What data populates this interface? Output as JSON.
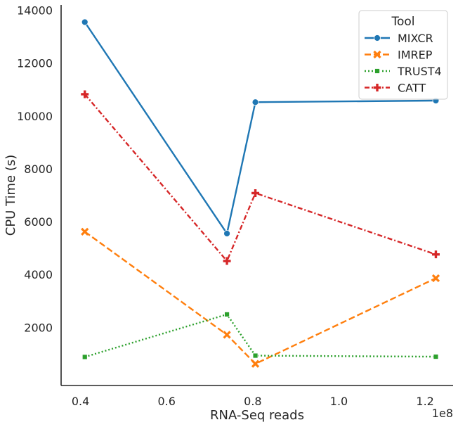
{
  "chart_data": {
    "type": "line",
    "xlabel": "RNA-Seq reads",
    "ylabel": "CPU Time (s)",
    "x_offset_label": "1e8",
    "xlim": [
      0.355,
      1.265
    ],
    "ylim": [
      -200,
      14200
    ],
    "x_ticks": [
      0.4,
      0.6,
      0.8,
      1.0,
      1.2
    ],
    "x_tick_labels": [
      "0.4",
      "0.6",
      "0.8",
      "1.0",
      "1.2"
    ],
    "y_ticks": [
      2000,
      4000,
      6000,
      8000,
      10000,
      12000,
      14000
    ],
    "y_tick_labels": [
      "2000",
      "4000",
      "6000",
      "8000",
      "10000",
      "12000",
      "14000"
    ],
    "grid": false,
    "legend": {
      "title": "Tool",
      "position": "top-right"
    },
    "x": [
      0.41,
      0.74,
      0.806,
      1.225
    ],
    "series": [
      {
        "name": "MIXCR",
        "values": [
          13550,
          5550,
          10520,
          10580
        ],
        "color": "#1f77b4",
        "dash": "",
        "marker": "circle"
      },
      {
        "name": "IMREP",
        "values": [
          5620,
          1720,
          620,
          3860
        ],
        "color": "#ff7f0e",
        "dash": "9,4",
        "marker": "x"
      },
      {
        "name": "TRUST4",
        "values": [
          880,
          2490,
          930,
          890
        ],
        "color": "#2ca02c",
        "dash": "2,3",
        "marker": "square"
      },
      {
        "name": "CATT",
        "values": [
          10820,
          4510,
          7080,
          4760
        ],
        "color": "#d62728",
        "dash": "7,3,2,3",
        "marker": "plus"
      }
    ]
  }
}
